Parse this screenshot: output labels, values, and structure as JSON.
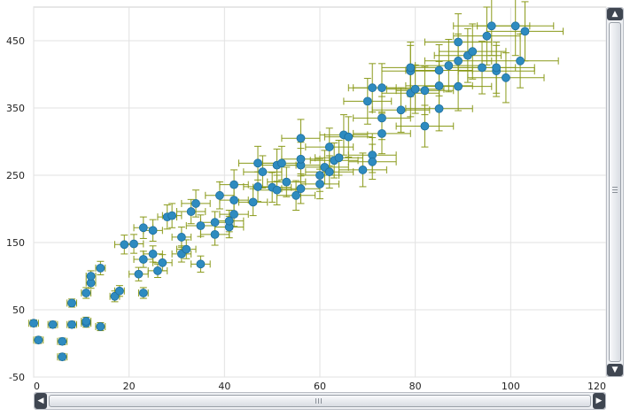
{
  "chart_data": {
    "type": "scatter",
    "title": "",
    "xlabel": "",
    "ylabel": "",
    "xlim": [
      0,
      120
    ],
    "ylim": [
      -50,
      500
    ],
    "x_ticks": [
      "0",
      "20",
      "40",
      "60",
      "80",
      "100",
      "120"
    ],
    "y_ticks": [
      "-50",
      "50",
      "150",
      "250",
      "350",
      "450"
    ],
    "grid": true,
    "legend": "none",
    "colors": {
      "marker": "#2e8bc0",
      "error_bar": "#8a9a1a",
      "grid": "#e2e2e2"
    },
    "points": [
      {
        "x": 0,
        "y": 30,
        "xerr": 1,
        "yerr": 5
      },
      {
        "x": 1,
        "y": 5,
        "xerr": 1,
        "yerr": 5
      },
      {
        "x": 4,
        "y": 28,
        "xerr": 1,
        "yerr": 5
      },
      {
        "x": 6,
        "y": 3,
        "xerr": 1,
        "yerr": 5
      },
      {
        "x": 6,
        "y": -20,
        "xerr": 1,
        "yerr": 5
      },
      {
        "x": 8,
        "y": 28,
        "xerr": 1,
        "yerr": 5
      },
      {
        "x": 8,
        "y": 60,
        "xerr": 1,
        "yerr": 6
      },
      {
        "x": 11,
        "y": 30,
        "xerr": 1,
        "yerr": 6
      },
      {
        "x": 11,
        "y": 33,
        "xerr": 1,
        "yerr": 6
      },
      {
        "x": 11,
        "y": 75,
        "xerr": 1,
        "yerr": 8
      },
      {
        "x": 12,
        "y": 90,
        "xerr": 1,
        "yerr": 8
      },
      {
        "x": 12,
        "y": 100,
        "xerr": 1,
        "yerr": 8
      },
      {
        "x": 14,
        "y": 25,
        "xerr": 1,
        "yerr": 6
      },
      {
        "x": 14,
        "y": 112,
        "xerr": 1,
        "yerr": 10
      },
      {
        "x": 17,
        "y": 70,
        "xerr": 1,
        "yerr": 8
      },
      {
        "x": 18,
        "y": 78,
        "xerr": 1,
        "yerr": 8
      },
      {
        "x": 19,
        "y": 147,
        "xerr": 2,
        "yerr": 14
      },
      {
        "x": 21,
        "y": 148,
        "xerr": 2,
        "yerr": 14
      },
      {
        "x": 22,
        "y": 103,
        "xerr": 2,
        "yerr": 10
      },
      {
        "x": 23,
        "y": 75,
        "xerr": 1,
        "yerr": 8
      },
      {
        "x": 23,
        "y": 125,
        "xerr": 2,
        "yerr": 12
      },
      {
        "x": 23,
        "y": 172,
        "xerr": 2,
        "yerr": 16
      },
      {
        "x": 25,
        "y": 168,
        "xerr": 2,
        "yerr": 16
      },
      {
        "x": 25,
        "y": 133,
        "xerr": 2,
        "yerr": 12
      },
      {
        "x": 26,
        "y": 108,
        "xerr": 2,
        "yerr": 10
      },
      {
        "x": 27,
        "y": 120,
        "xerr": 2,
        "yerr": 12
      },
      {
        "x": 28,
        "y": 188,
        "xerr": 2,
        "yerr": 18
      },
      {
        "x": 29,
        "y": 190,
        "xerr": 2,
        "yerr": 18
      },
      {
        "x": 31,
        "y": 133,
        "xerr": 2,
        "yerr": 12
      },
      {
        "x": 31,
        "y": 158,
        "xerr": 2,
        "yerr": 15
      },
      {
        "x": 32,
        "y": 140,
        "xerr": 2,
        "yerr": 14
      },
      {
        "x": 33,
        "y": 196,
        "xerr": 3,
        "yerr": 18
      },
      {
        "x": 34,
        "y": 208,
        "xerr": 3,
        "yerr": 20
      },
      {
        "x": 35,
        "y": 118,
        "xerr": 2,
        "yerr": 12
      },
      {
        "x": 35,
        "y": 175,
        "xerr": 3,
        "yerr": 16
      },
      {
        "x": 38,
        "y": 180,
        "xerr": 3,
        "yerr": 16
      },
      {
        "x": 38,
        "y": 162,
        "xerr": 3,
        "yerr": 16
      },
      {
        "x": 39,
        "y": 220,
        "xerr": 3,
        "yerr": 20
      },
      {
        "x": 41,
        "y": 173,
        "xerr": 3,
        "yerr": 16
      },
      {
        "x": 41,
        "y": 182,
        "xerr": 3,
        "yerr": 16
      },
      {
        "x": 42,
        "y": 213,
        "xerr": 3,
        "yerr": 20
      },
      {
        "x": 42,
        "y": 236,
        "xerr": 3,
        "yerr": 22
      },
      {
        "x": 42,
        "y": 192,
        "xerr": 3,
        "yerr": 18
      },
      {
        "x": 46,
        "y": 210,
        "xerr": 3,
        "yerr": 20
      },
      {
        "x": 47,
        "y": 233,
        "xerr": 3,
        "yerr": 22
      },
      {
        "x": 47,
        "y": 268,
        "xerr": 4,
        "yerr": 25
      },
      {
        "x": 48,
        "y": 255,
        "xerr": 4,
        "yerr": 24
      },
      {
        "x": 50,
        "y": 232,
        "xerr": 4,
        "yerr": 22
      },
      {
        "x": 51,
        "y": 265,
        "xerr": 4,
        "yerr": 24
      },
      {
        "x": 51,
        "y": 228,
        "xerr": 4,
        "yerr": 22
      },
      {
        "x": 52,
        "y": 268,
        "xerr": 4,
        "yerr": 25
      },
      {
        "x": 53,
        "y": 240,
        "xerr": 4,
        "yerr": 22
      },
      {
        "x": 55,
        "y": 220,
        "xerr": 4,
        "yerr": 22
      },
      {
        "x": 56,
        "y": 230,
        "xerr": 4,
        "yerr": 22
      },
      {
        "x": 56,
        "y": 265,
        "xerr": 4,
        "yerr": 25
      },
      {
        "x": 56,
        "y": 274,
        "xerr": 4,
        "yerr": 25
      },
      {
        "x": 56,
        "y": 305,
        "xerr": 4,
        "yerr": 28
      },
      {
        "x": 60,
        "y": 250,
        "xerr": 4,
        "yerr": 24
      },
      {
        "x": 60,
        "y": 237,
        "xerr": 4,
        "yerr": 22
      },
      {
        "x": 61,
        "y": 262,
        "xerr": 5,
        "yerr": 25
      },
      {
        "x": 62,
        "y": 255,
        "xerr": 5,
        "yerr": 24
      },
      {
        "x": 62,
        "y": 292,
        "xerr": 5,
        "yerr": 28
      },
      {
        "x": 63,
        "y": 272,
        "xerr": 5,
        "yerr": 26
      },
      {
        "x": 64,
        "y": 276,
        "xerr": 5,
        "yerr": 26
      },
      {
        "x": 65,
        "y": 310,
        "xerr": 5,
        "yerr": 30
      },
      {
        "x": 66,
        "y": 307,
        "xerr": 5,
        "yerr": 30
      },
      {
        "x": 69,
        "y": 258,
        "xerr": 5,
        "yerr": 25
      },
      {
        "x": 70,
        "y": 360,
        "xerr": 5,
        "yerr": 34
      },
      {
        "x": 71,
        "y": 280,
        "xerr": 5,
        "yerr": 26
      },
      {
        "x": 71,
        "y": 270,
        "xerr": 5,
        "yerr": 26
      },
      {
        "x": 71,
        "y": 380,
        "xerr": 5,
        "yerr": 36
      },
      {
        "x": 73,
        "y": 380,
        "xerr": 6,
        "yerr": 36
      },
      {
        "x": 73,
        "y": 335,
        "xerr": 6,
        "yerr": 32
      },
      {
        "x": 73,
        "y": 312,
        "xerr": 6,
        "yerr": 30
      },
      {
        "x": 77,
        "y": 347,
        "xerr": 6,
        "yerr": 33
      },
      {
        "x": 79,
        "y": 405,
        "xerr": 6,
        "yerr": 38
      },
      {
        "x": 79,
        "y": 410,
        "xerr": 6,
        "yerr": 38
      },
      {
        "x": 79,
        "y": 372,
        "xerr": 6,
        "yerr": 35
      },
      {
        "x": 80,
        "y": 378,
        "xerr": 6,
        "yerr": 36
      },
      {
        "x": 82,
        "y": 376,
        "xerr": 6,
        "yerr": 36
      },
      {
        "x": 82,
        "y": 323,
        "xerr": 6,
        "yerr": 31
      },
      {
        "x": 85,
        "y": 383,
        "xerr": 7,
        "yerr": 36
      },
      {
        "x": 85,
        "y": 406,
        "xerr": 7,
        "yerr": 38
      },
      {
        "x": 85,
        "y": 349,
        "xerr": 7,
        "yerr": 33
      },
      {
        "x": 87,
        "y": 413,
        "xerr": 7,
        "yerr": 39
      },
      {
        "x": 89,
        "y": 448,
        "xerr": 7,
        "yerr": 42
      },
      {
        "x": 89,
        "y": 420,
        "xerr": 7,
        "yerr": 40
      },
      {
        "x": 89,
        "y": 382,
        "xerr": 7,
        "yerr": 36
      },
      {
        "x": 91,
        "y": 428,
        "xerr": 7,
        "yerr": 40
      },
      {
        "x": 92,
        "y": 434,
        "xerr": 7,
        "yerr": 41
      },
      {
        "x": 94,
        "y": 410,
        "xerr": 7,
        "yerr": 39
      },
      {
        "x": 95,
        "y": 457,
        "xerr": 7,
        "yerr": 43
      },
      {
        "x": 96,
        "y": 472,
        "xerr": 8,
        "yerr": 44
      },
      {
        "x": 97,
        "y": 405,
        "xerr": 8,
        "yerr": 38
      },
      {
        "x": 97,
        "y": 410,
        "xerr": 8,
        "yerr": 38
      },
      {
        "x": 99,
        "y": 395,
        "xerr": 8,
        "yerr": 37
      },
      {
        "x": 101,
        "y": 472,
        "xerr": 8,
        "yerr": 44
      },
      {
        "x": 102,
        "y": 420,
        "xerr": 8,
        "yerr": 40
      },
      {
        "x": 103,
        "y": 464,
        "xerr": 8,
        "yerr": 44
      }
    ]
  },
  "scrollbars": {
    "up_icon": "▲",
    "down_icon": "▼",
    "left_icon": "◀",
    "right_icon": "▶"
  }
}
